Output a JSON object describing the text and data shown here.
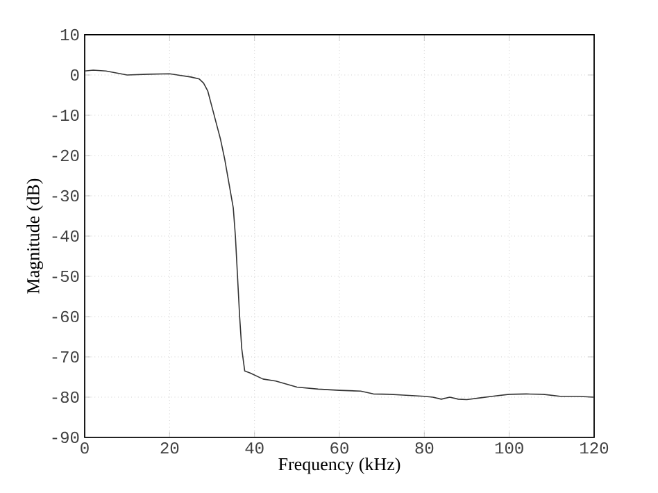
{
  "chart_data": {
    "type": "line",
    "xlabel": "Frequency (kHz)",
    "ylabel": "Magnitude (dB)",
    "xlim": [
      0,
      120
    ],
    "ylim": [
      -90,
      10
    ],
    "xticks": [
      0,
      20,
      40,
      60,
      80,
      100,
      120
    ],
    "yticks": [
      -90,
      -80,
      -70,
      -60,
      -50,
      -40,
      -30,
      -20,
      -10,
      0,
      10
    ],
    "grid": true,
    "marker": "none",
    "line_style": "solid",
    "series": [
      {
        "color": "#333333",
        "x": [
          0,
          2,
          5,
          10,
          15,
          20,
          25,
          27,
          28,
          29,
          30,
          31,
          32,
          33,
          34,
          35,
          35.5,
          36,
          36.5,
          37,
          37.7,
          39,
          42,
          45,
          50,
          55,
          60,
          65,
          68,
          72,
          75,
          80,
          82,
          84,
          86,
          88,
          90,
          93,
          96,
          100,
          104,
          108,
          112,
          116,
          120
        ],
        "values": [
          1,
          1.2,
          1,
          0,
          0.2,
          0.3,
          -0.5,
          -1,
          -2,
          -4,
          -8,
          -12,
          -16,
          -21,
          -27,
          -33,
          -40,
          -50,
          -60,
          -68,
          -73.5,
          -74,
          -75.5,
          -76,
          -77.5,
          -78,
          -78.3,
          -78.5,
          -79.2,
          -79.3,
          -79.5,
          -79.8,
          -80,
          -80.5,
          -80,
          -80.5,
          -80.6,
          -80.2,
          -79.8,
          -79.3,
          -79.2,
          -79.3,
          -79.8,
          -79.8,
          -80
        ]
      }
    ]
  }
}
